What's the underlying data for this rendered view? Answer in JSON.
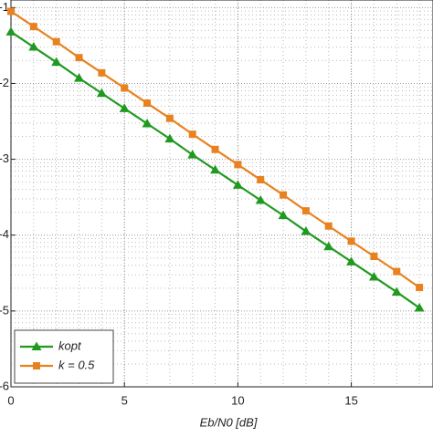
{
  "chart_data": {
    "type": "line",
    "x_label": "Eb/N0 [dB]",
    "x": [
      0,
      1,
      2,
      3,
      4,
      5,
      6,
      7,
      8,
      9,
      10,
      11,
      12,
      13,
      14,
      15,
      16,
      17,
      18
    ],
    "series": [
      {
        "name": "kopt",
        "color": "#1f9a1f",
        "marker": "triangle",
        "values": [
          -1.32,
          -1.52,
          -1.72,
          -1.93,
          -2.13,
          -2.33,
          -2.53,
          -2.73,
          -2.94,
          -3.14,
          -3.34,
          -3.54,
          -3.74,
          -3.95,
          -4.15,
          -4.35,
          -4.55,
          -4.75,
          -4.96
        ]
      },
      {
        "name": "k = 0.5",
        "color": "#e8821e",
        "marker": "square",
        "values": [
          -1.05,
          -1.25,
          -1.45,
          -1.66,
          -1.86,
          -2.06,
          -2.26,
          -2.46,
          -2.67,
          -2.87,
          -3.07,
          -3.27,
          -3.47,
          -3.68,
          -3.88,
          -4.08,
          -4.28,
          -4.48,
          -4.69
        ]
      }
    ],
    "xlim": [
      0,
      18.6
    ],
    "xticks": [
      0,
      5,
      10,
      15
    ],
    "ylim": [
      -6,
      -0.9
    ],
    "yticks": [
      -1,
      -2,
      -3,
      -4,
      -5,
      -6
    ],
    "grid": true,
    "legend": "lower left"
  }
}
